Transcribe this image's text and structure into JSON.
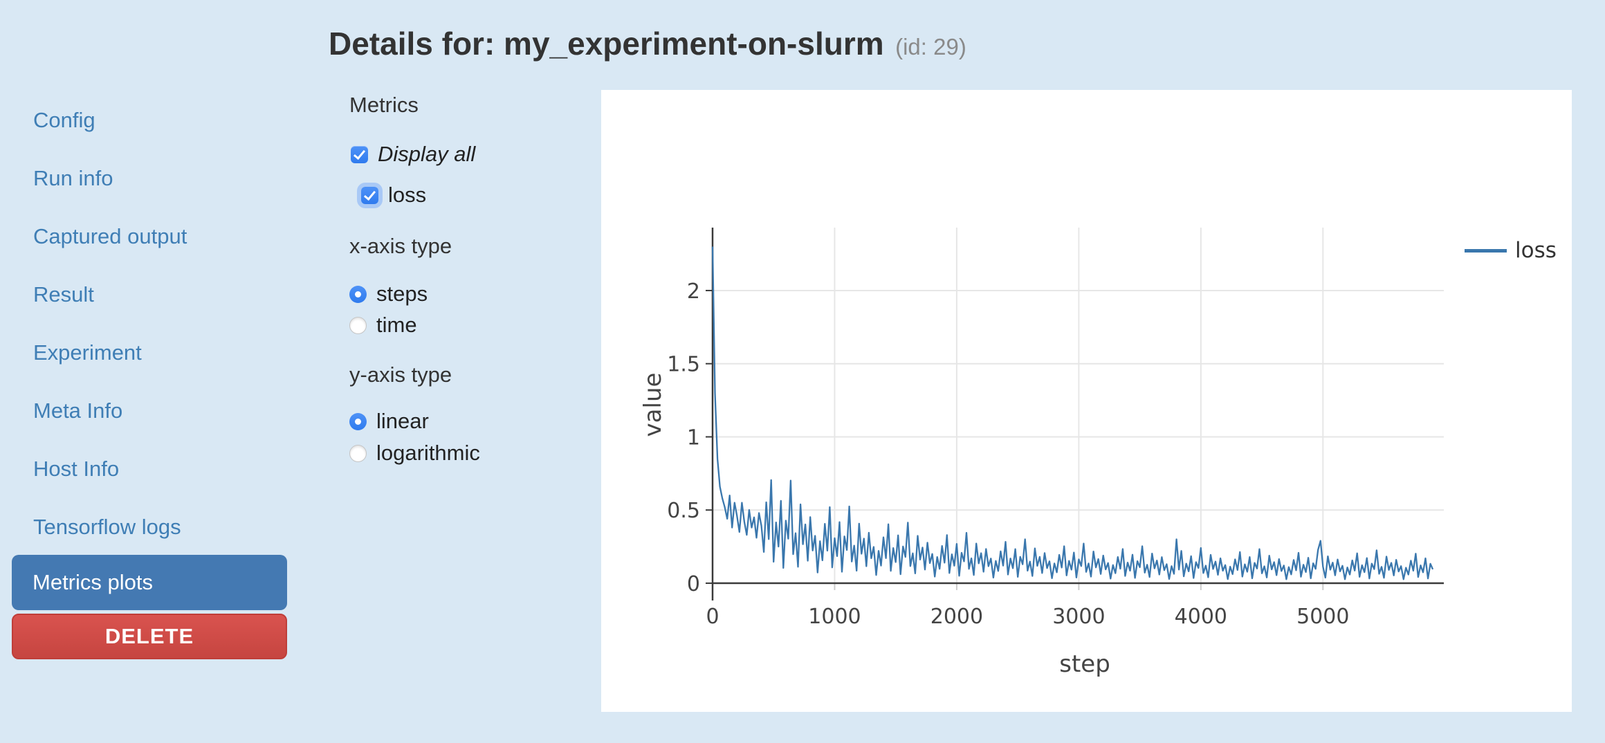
{
  "header": {
    "title": "Details for: my_experiment-on-slurm",
    "id_suffix": "(id: 29)"
  },
  "sidebar": {
    "items": [
      {
        "label": "Config"
      },
      {
        "label": "Run info"
      },
      {
        "label": "Captured output"
      },
      {
        "label": "Result"
      },
      {
        "label": "Experiment"
      },
      {
        "label": "Meta Info"
      },
      {
        "label": "Host Info"
      },
      {
        "label": "Tensorflow logs"
      }
    ],
    "active_item": {
      "label": "Metrics plots",
      "background": "#4479b2"
    },
    "delete_button": {
      "label": "DELETE",
      "background": "#d9534f"
    }
  },
  "controls": {
    "metrics_heading": "Metrics",
    "display_all": {
      "label": "Display all",
      "checked": true
    },
    "metric_checkboxes": [
      {
        "label": "loss",
        "checked": true
      }
    ],
    "x_axis_type": {
      "heading": "x-axis type",
      "options": [
        {
          "label": "steps",
          "selected": true
        },
        {
          "label": "time",
          "selected": false
        }
      ]
    },
    "y_axis_type": {
      "heading": "y-axis type",
      "options": [
        {
          "label": "linear",
          "selected": true
        },
        {
          "label": "logarithmic",
          "selected": false
        }
      ]
    }
  },
  "chart_data": {
    "type": "line",
    "title": "",
    "xlabel": "step",
    "ylabel": "value",
    "x_ticks": [
      0,
      1000,
      2000,
      3000,
      4000,
      5000
    ],
    "y_ticks": [
      0,
      0.5,
      1,
      1.5,
      2
    ],
    "xlim": [
      0,
      5990
    ],
    "ylim": [
      0,
      2.43
    ],
    "grid": true,
    "legend_position": "right",
    "legend": [
      {
        "label": "loss",
        "color": "#3a77ad"
      }
    ],
    "series": [
      {
        "name": "loss",
        "color": "#3a77ad",
        "x_start": 0,
        "x_step": 20,
        "values": [
          2.3,
          1.3,
          0.85,
          0.66,
          0.58,
          0.52,
          0.44,
          0.6,
          0.38,
          0.55,
          0.46,
          0.35,
          0.55,
          0.42,
          0.33,
          0.5,
          0.38,
          0.45,
          0.31,
          0.48,
          0.392,
          0.213,
          0.553,
          0.301,
          0.705,
          0.146,
          0.415,
          0.25,
          0.563,
          0.104,
          0.428,
          0.304,
          0.701,
          0.198,
          0.342,
          0.112,
          0.539,
          0.266,
          0.402,
          0.153,
          0.452,
          0.223,
          0.324,
          0.073,
          0.287,
          0.156,
          0.406,
          0.222,
          0.52,
          0.108,
          0.308,
          0.185,
          0.418,
          0.078,
          0.32,
          0.227,
          0.525,
          0.148,
          0.257,
          0.085,
          0.407,
          0.201,
          0.305,
          0.116,
          0.345,
          0.17,
          0.248,
          0.056,
          0.221,
          0.12,
          0.314,
          0.171,
          0.403,
          0.084,
          0.24,
          0.144,
          0.327,
          0.061,
          0.251,
          0.179,
          0.414,
          0.117,
          0.204,
          0.067,
          0.324,
          0.161,
          0.244,
          0.093,
          0.277,
          0.137,
          0.2,
          0.045,
          0.179,
          0.098,
          0.255,
          0.14,
          0.329,
          0.069,
          0.197,
          0.119,
          0.269,
          0.05,
          0.208,
          0.149,
          0.344,
          0.098,
          0.17,
          0.056,
          0.271,
          0.135,
          0.205,
          0.078,
          0.234,
          0.116,
          0.169,
          0.038,
          0.152,
          0.083,
          0.218,
          0.12,
          0.283,
          0.059,
          0.169,
          0.102,
          0.233,
          0.043,
          0.18,
          0.129,
          0.3,
          0.085,
          0.148,
          0.049,
          0.238,
          0.118,
          0.18,
          0.069,
          0.206,
          0.103,
          0.15,
          0.034,
          0.135,
          0.074,
          0.194,
          0.107,
          0.253,
          0.053,
          0.152,
          0.092,
          0.21,
          0.039,
          0.163,
          0.117,
          0.271,
          0.077,
          0.135,
          0.045,
          0.217,
          0.108,
          0.165,
          0.063,
          0.189,
          0.094,
          0.138,
          0.031,
          0.124,
          0.068,
          0.179,
          0.099,
          0.234,
          0.049,
          0.141,
          0.085,
          0.195,
          0.036,
          0.151,
          0.109,
          0.253,
          0.072,
          0.126,
          0.042,
          0.203,
          0.101,
          0.155,
          0.059,
          0.178,
          0.089,
          0.13,
          0.029,
          0.117,
          0.064,
          0.3,
          0.093,
          0.221,
          0.047,
          0.134,
          0.081,
          0.185,
          0.035,
          0.144,
          0.104,
          0.241,
          0.069,
          0.12,
          0.04,
          0.194,
          0.097,
          0.148,
          0.057,
          0.17,
          0.085,
          0.124,
          0.028,
          0.113,
          0.062,
          0.163,
          0.09,
          0.213,
          0.045,
          0.129,
          0.078,
          0.179,
          0.033,
          0.139,
          0.1,
          0.233,
          0.067,
          0.116,
          0.039,
          0.188,
          0.094,
          0.144,
          0.055,
          0.165,
          0.083,
          0.121,
          0.027,
          0.11,
          0.06,
          0.159,
          0.088,
          0.208,
          0.044,
          0.126,
          0.076,
          0.174,
          0.033,
          0.136,
          0.098,
          0.228,
          0.29,
          0.114,
          0.038,
          0.184,
          0.092,
          0.141,
          0.054,
          0.162,
          0.081,
          0.119,
          0.027,
          0.108,
          0.059,
          0.156,
          0.086,
          0.204,
          0.043,
          0.123,
          0.075,
          0.172,
          0.032,
          0.134,
          0.096,
          0.225,
          0.064,
          0.112,
          0.037,
          0.182,
          0.091,
          0.139,
          0.053,
          0.16,
          0.08,
          0.117,
          0.027,
          0.106,
          0.059,
          0.154,
          0.085,
          0.202,
          0.042,
          0.122,
          0.074,
          0.17,
          0.032,
          0.133,
          0.095
        ]
      }
    ]
  }
}
